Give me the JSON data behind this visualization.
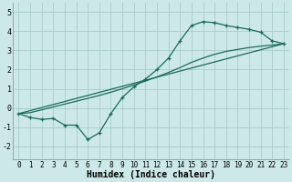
{
  "bg_color": "#cce8e8",
  "grid_color": "#aacccc",
  "line_color": "#1a6b5a",
  "xlabel": "Humidex (Indice chaleur)",
  "xlim": [
    -0.5,
    23.5
  ],
  "ylim": [
    -2.7,
    5.5
  ],
  "xticks": [
    0,
    1,
    2,
    3,
    4,
    5,
    6,
    7,
    8,
    9,
    10,
    11,
    12,
    13,
    14,
    15,
    16,
    17,
    18,
    19,
    20,
    21,
    22,
    23
  ],
  "yticks": [
    -2,
    -1,
    0,
    1,
    2,
    3,
    4,
    5
  ],
  "curve1_x": [
    0,
    1,
    2,
    3,
    4,
    5,
    6,
    7,
    8,
    9,
    10,
    11,
    12,
    13,
    14,
    15,
    16,
    17,
    18,
    19,
    20,
    21,
    22,
    23
  ],
  "curve1_y": [
    -0.3,
    -0.5,
    -0.6,
    -0.55,
    -0.9,
    -0.9,
    -1.65,
    -1.3,
    -0.3,
    0.55,
    1.1,
    1.5,
    2.0,
    2.6,
    3.5,
    4.3,
    4.5,
    4.45,
    4.3,
    4.2,
    4.1,
    3.95,
    3.5,
    3.35
  ],
  "line2_x": [
    0,
    23
  ],
  "line2_y": [
    -0.3,
    3.35
  ],
  "curve3_x": [
    0,
    1,
    2,
    3,
    4,
    5,
    6,
    7,
    8,
    9,
    10,
    11,
    12,
    13,
    14,
    15,
    16,
    17,
    18,
    19,
    20,
    21,
    22,
    23
  ],
  "curve3_y": [
    -0.3,
    -0.25,
    -0.1,
    0.05,
    0.2,
    0.35,
    0.5,
    0.65,
    0.82,
    1.0,
    1.2,
    1.4,
    1.62,
    1.85,
    2.1,
    2.38,
    2.6,
    2.8,
    2.95,
    3.05,
    3.15,
    3.22,
    3.28,
    3.35
  ],
  "xlabel_fontsize": 7,
  "tick_fontsize": 6
}
